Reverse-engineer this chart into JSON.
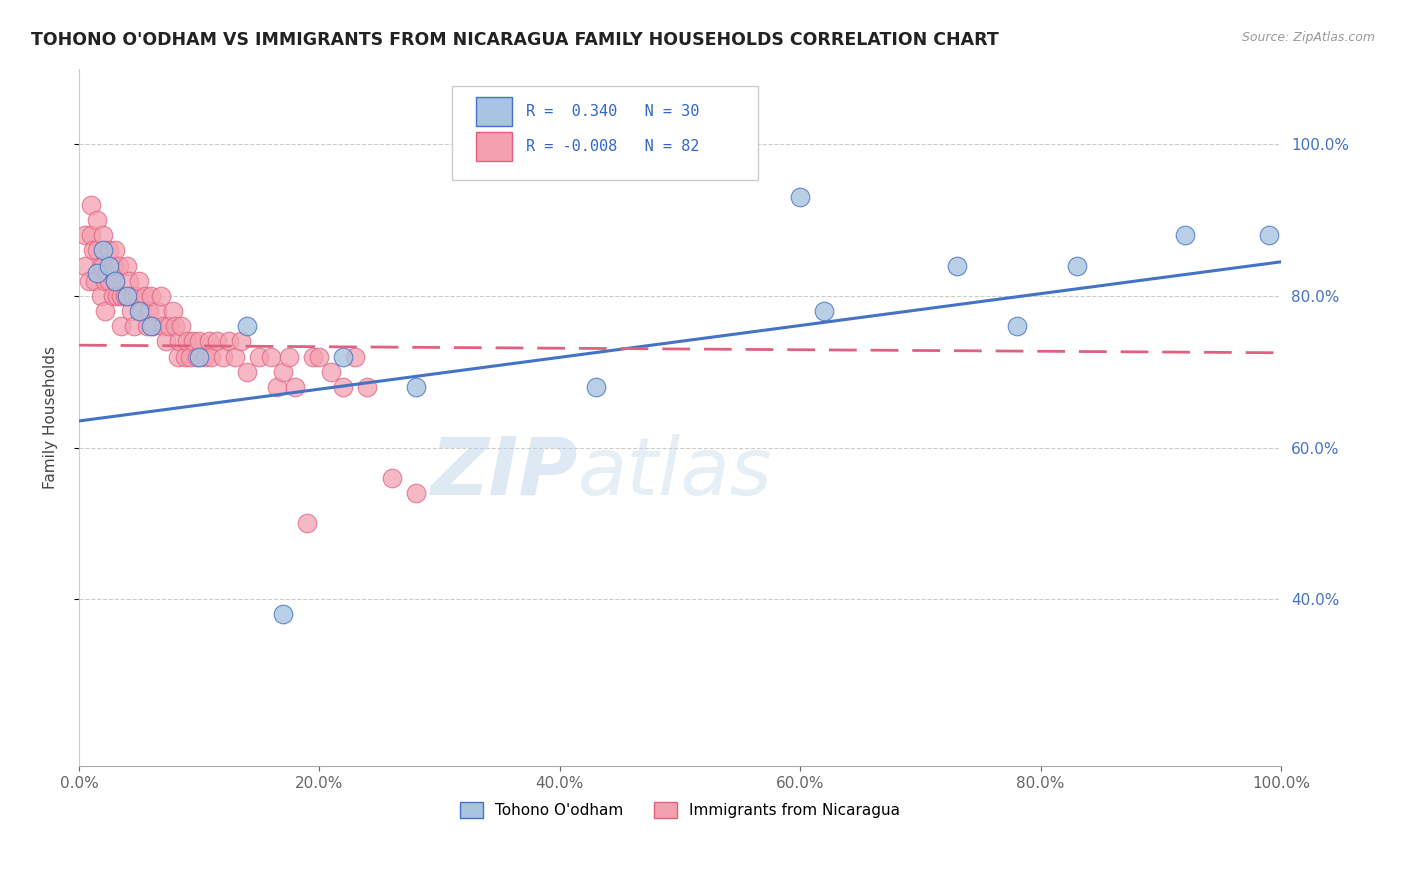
{
  "title": "TOHONO O'ODHAM VS IMMIGRANTS FROM NICARAGUA FAMILY HOUSEHOLDS CORRELATION CHART",
  "source": "Source: ZipAtlas.com",
  "ylabel": "Family Households",
  "color_blue": "#a8c4e0",
  "color_pink": "#f4a0b0",
  "line_blue": "#4472c4",
  "line_pink": "#e06080",
  "series1_label": "Tohono O'odham",
  "series2_label": "Immigrants from Nicaragua",
  "xlim": [
    0.0,
    1.0
  ],
  "ylim": [
    0.18,
    1.1
  ],
  "yticks": [
    0.4,
    0.6,
    0.8,
    1.0
  ],
  "ytick_labels": [
    "40.0%",
    "60.0%",
    "80.0%",
    "100.0%"
  ],
  "xticks": [
    0.0,
    0.2,
    0.4,
    0.6,
    0.8,
    1.0
  ],
  "xtick_labels": [
    "0.0%",
    "20.0%",
    "40.0%",
    "60.0%",
    "80.0%",
    "100.0%"
  ],
  "blue_x": [
    0.015,
    0.02,
    0.025,
    0.03,
    0.04,
    0.05,
    0.06,
    0.1,
    0.14,
    0.17,
    0.22,
    0.28,
    0.43,
    0.6,
    0.62,
    0.73,
    0.78,
    0.83,
    0.92,
    0.99
  ],
  "blue_y": [
    0.83,
    0.86,
    0.84,
    0.82,
    0.8,
    0.78,
    0.76,
    0.72,
    0.76,
    0.38,
    0.72,
    0.68,
    0.68,
    0.93,
    0.78,
    0.84,
    0.76,
    0.84,
    0.88,
    0.88
  ],
  "pink_x": [
    0.005,
    0.005,
    0.008,
    0.01,
    0.01,
    0.012,
    0.013,
    0.015,
    0.015,
    0.018,
    0.018,
    0.02,
    0.02,
    0.022,
    0.022,
    0.023,
    0.025,
    0.025,
    0.028,
    0.028,
    0.03,
    0.03,
    0.032,
    0.033,
    0.035,
    0.035,
    0.038,
    0.04,
    0.04,
    0.042,
    0.043,
    0.045,
    0.046,
    0.048,
    0.05,
    0.052,
    0.055,
    0.057,
    0.058,
    0.06,
    0.062,
    0.065,
    0.068,
    0.07,
    0.072,
    0.075,
    0.078,
    0.08,
    0.082,
    0.083,
    0.085,
    0.088,
    0.09,
    0.092,
    0.095,
    0.098,
    0.1,
    0.105,
    0.108,
    0.11,
    0.115,
    0.12,
    0.125,
    0.13,
    0.135,
    0.14,
    0.15,
    0.16,
    0.165,
    0.17,
    0.175,
    0.18,
    0.19,
    0.195,
    0.2,
    0.21,
    0.22,
    0.23,
    0.24,
    0.26,
    0.28
  ],
  "pink_y": [
    0.88,
    0.84,
    0.82,
    0.92,
    0.88,
    0.86,
    0.82,
    0.9,
    0.86,
    0.84,
    0.8,
    0.88,
    0.84,
    0.82,
    0.78,
    0.83,
    0.86,
    0.82,
    0.84,
    0.8,
    0.86,
    0.82,
    0.8,
    0.84,
    0.8,
    0.76,
    0.8,
    0.84,
    0.8,
    0.82,
    0.78,
    0.8,
    0.76,
    0.8,
    0.82,
    0.78,
    0.8,
    0.76,
    0.78,
    0.8,
    0.76,
    0.78,
    0.8,
    0.76,
    0.74,
    0.76,
    0.78,
    0.76,
    0.72,
    0.74,
    0.76,
    0.72,
    0.74,
    0.72,
    0.74,
    0.72,
    0.74,
    0.72,
    0.74,
    0.72,
    0.74,
    0.72,
    0.74,
    0.72,
    0.74,
    0.7,
    0.72,
    0.72,
    0.68,
    0.7,
    0.72,
    0.68,
    0.5,
    0.72,
    0.72,
    0.7,
    0.68,
    0.72,
    0.68,
    0.56,
    0.54
  ],
  "blue_trend_x": [
    0.0,
    1.0
  ],
  "blue_trend_y": [
    0.635,
    0.845
  ],
  "pink_trend_x": [
    0.0,
    1.0
  ],
  "pink_trend_y": [
    0.735,
    0.725
  ]
}
